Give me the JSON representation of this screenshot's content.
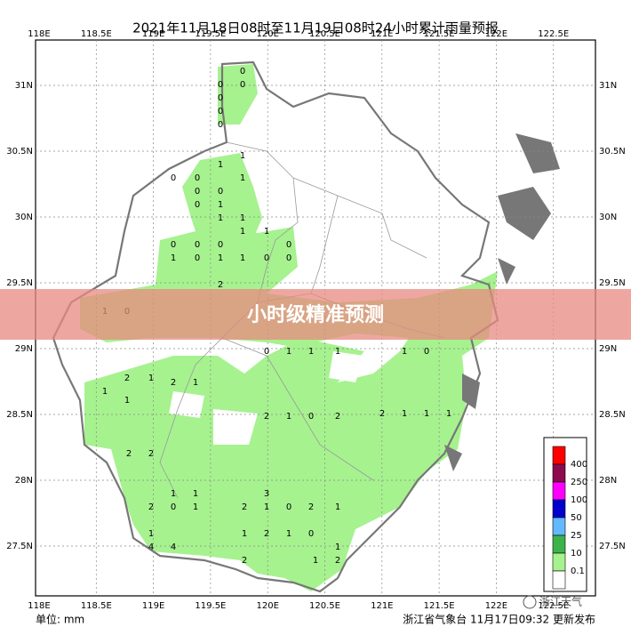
{
  "header": {
    "title": "2021年11月18日08时至11月19日08时24小时累计雨量预报"
  },
  "map": {
    "lon_ticks": [
      "118E",
      "118.5E",
      "119E",
      "119.5E",
      "120E",
      "120.5E",
      "121E",
      "121.5E",
      "122E",
      "122.5E"
    ],
    "lat_ticks": [
      "31N",
      "30.5N",
      "30N",
      "29.5N",
      "29N",
      "28.5N",
      "28N",
      "27.5N"
    ],
    "stations": [
      0,
      0,
      0,
      0,
      0,
      0,
      0,
      0,
      1,
      1,
      0,
      0,
      1,
      1,
      0,
      1,
      1,
      0,
      0,
      0,
      1,
      1,
      1,
      0,
      1,
      2,
      1,
      0,
      0,
      0,
      1,
      0,
      0,
      1,
      1,
      1,
      1,
      0,
      2,
      1,
      2,
      1,
      1,
      1,
      2,
      1,
      0,
      2,
      2,
      1,
      1,
      1,
      2,
      2,
      1,
      1,
      3,
      2,
      1,
      0,
      2,
      1,
      2,
      0,
      1,
      1,
      4,
      4,
      1,
      2,
      1,
      0,
      1,
      1,
      2,
      2
    ]
  },
  "banner": {
    "text": "小时级精准预测"
  },
  "legend": {
    "levels": [
      "400",
      "250",
      "100",
      "50",
      "25",
      "10",
      "0.1"
    ],
    "colors": [
      "#ff0000",
      "#8b0a50",
      "#ff00ff",
      "#0000cd",
      "#63b8ff",
      "#3cb34a",
      "#a6f28f",
      "#ffffff"
    ]
  },
  "footer": {
    "unit": "单位: mm",
    "issuer": "浙江省气象台 11月17日09:32 更新发布"
  },
  "watermark": {
    "text": "浙江天气"
  }
}
